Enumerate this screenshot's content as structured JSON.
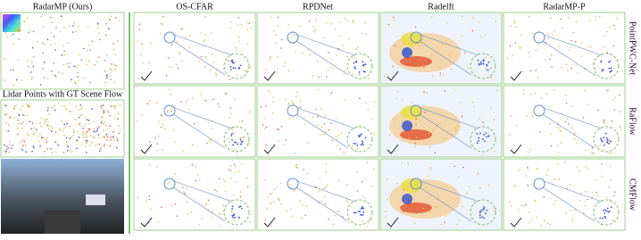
{
  "left": {
    "title": "RadarMP (Ours)",
    "caption": "Lidar Points with GT Scene Flow"
  },
  "columns": [
    "OS-CFAR",
    "RPDNet",
    "Radelft",
    "RadarMP-P"
  ],
  "rows": [
    "PointPWC-Net",
    "RaFlow",
    "CMFlow"
  ]
}
